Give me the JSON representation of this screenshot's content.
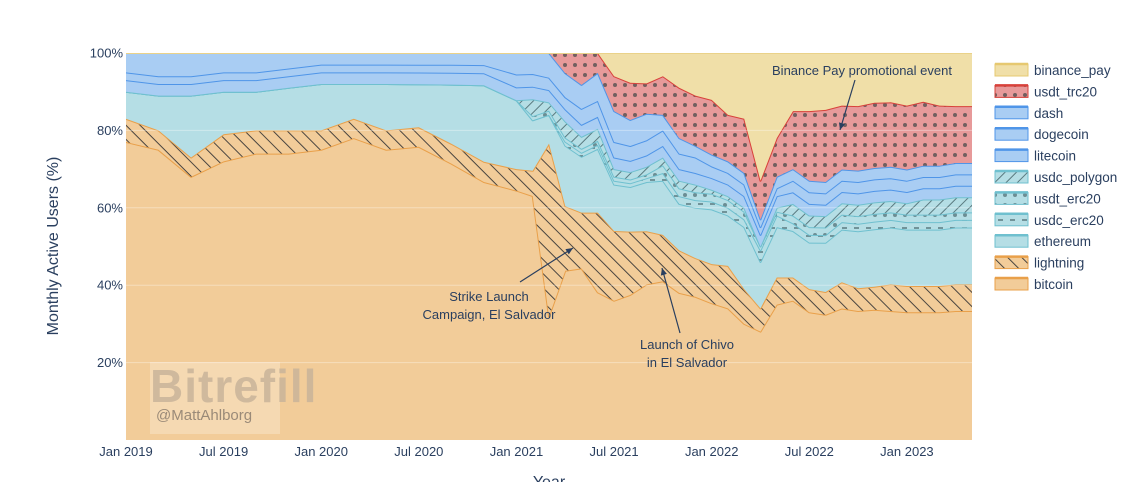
{
  "chart_data": {
    "type": "area",
    "stacked": "percent",
    "xlabel": "Year",
    "ylabel": "Monthly Active Users (%)",
    "x": [
      "2019-01",
      "2019-03",
      "2019-05",
      "2019-07",
      "2019-09",
      "2019-11",
      "2020-01",
      "2020-03",
      "2020-05",
      "2020-07",
      "2020-09",
      "2020-11",
      "2021-01",
      "2021-02",
      "2021-03",
      "2021-04",
      "2021-05",
      "2021-06",
      "2021-07",
      "2021-08",
      "2021-09",
      "2021-10",
      "2021-11",
      "2021-12",
      "2022-01",
      "2022-02",
      "2022-03",
      "2022-04",
      "2022-05",
      "2022-06",
      "2022-07",
      "2022-08",
      "2022-09",
      "2022-10",
      "2022-11",
      "2022-12",
      "2023-01",
      "2023-02",
      "2023-03",
      "2023-04",
      "2023-05"
    ],
    "xticks": [
      "Jan 2019",
      "Jul 2019",
      "Jan 2020",
      "Jul 2020",
      "Jan 2021",
      "Jul 2021",
      "Jan 2022",
      "Jul 2022",
      "Jan 2023"
    ],
    "yticks": [
      "20%",
      "40%",
      "60%",
      "80%",
      "100%"
    ],
    "ylim": [
      0,
      100
    ],
    "series": [
      {
        "name": "bitcoin",
        "color": "#f2cc99",
        "values": [
          77,
          75,
          68,
          72,
          74,
          74,
          75,
          78,
          75,
          75,
          70,
          64,
          58,
          58,
          30,
          42,
          43,
          37,
          36,
          39,
          41,
          41,
          38,
          37,
          35,
          34,
          30,
          28,
          35,
          36,
          33,
          33,
          35,
          34,
          34,
          34,
          34,
          34,
          34,
          34,
          34
        ]
      },
      {
        "name": "lightning",
        "color": "#f2cc99",
        "values": [
          6,
          5,
          5,
          7,
          6,
          6,
          5,
          5,
          5,
          5,
          5,
          5,
          5,
          6,
          42,
          16,
          14,
          20,
          18,
          17,
          14,
          12,
          11,
          10,
          10,
          11,
          9,
          6,
          7,
          6,
          6,
          6,
          7,
          6,
          6,
          7,
          7,
          7,
          7,
          7,
          7
        ]
      },
      {
        "name": "ethereum",
        "color": "#b5dee5",
        "values": [
          7,
          9,
          16,
          11,
          10,
          11,
          12,
          9,
          12,
          11,
          15,
          19,
          16,
          12,
          7,
          15,
          14,
          16,
          12,
          12,
          13,
          14,
          12,
          13,
          14,
          13,
          16,
          12,
          13,
          12,
          12,
          13,
          14,
          15,
          15,
          15,
          15,
          15,
          15,
          15,
          15
        ]
      },
      {
        "name": "usdc_erc20",
        "color": "#b5dee5",
        "values": [
          0,
          0,
          0,
          0,
          0,
          0,
          0,
          0,
          0,
          0,
          0,
          0,
          0,
          0,
          0,
          1,
          1,
          1,
          1,
          1,
          1,
          2,
          2,
          2,
          2,
          2,
          2,
          3,
          3,
          2,
          2,
          2,
          2,
          2,
          2,
          2,
          2,
          2,
          2,
          2,
          2
        ]
      },
      {
        "name": "usdt_erc20",
        "color": "#b5dee5",
        "values": [
          0,
          0,
          0,
          0,
          0,
          0,
          0,
          0,
          0,
          0,
          0,
          0,
          0,
          1,
          1,
          1,
          1,
          1,
          1,
          1,
          1,
          2,
          2,
          2,
          2,
          2,
          2,
          1,
          1,
          2,
          2,
          2,
          2,
          2,
          2,
          2,
          2,
          2,
          2,
          2,
          2
        ]
      },
      {
        "name": "usdc_polygon",
        "color": "#b5dee5",
        "values": [
          0,
          0,
          0,
          0,
          0,
          0,
          0,
          0,
          0,
          0,
          0,
          0,
          0,
          4,
          2,
          4,
          3,
          3,
          2,
          2,
          2,
          2,
          2,
          2,
          1,
          1,
          1,
          0,
          1,
          3,
          3,
          3,
          3,
          3,
          3,
          3,
          3,
          4,
          4,
          4,
          4
        ]
      },
      {
        "name": "litecoin",
        "color": "#a9cdf3",
        "values": [
          3,
          3,
          3,
          3,
          3,
          3,
          3,
          3,
          3,
          3,
          3,
          3,
          3,
          3,
          3,
          3,
          3,
          3,
          3,
          3,
          3,
          3,
          3,
          3,
          3,
          3,
          3,
          3,
          3,
          3,
          3,
          3,
          3,
          3,
          3,
          3,
          3,
          3,
          3,
          3,
          3
        ]
      },
      {
        "name": "dogecoin",
        "color": "#a9cdf3",
        "values": [
          2,
          2,
          2,
          2,
          2,
          2,
          2,
          2,
          2,
          2,
          2,
          2,
          3,
          3,
          3,
          3,
          4,
          4,
          4,
          4,
          4,
          4,
          4,
          4,
          3,
          3,
          3,
          2,
          2,
          3,
          3,
          3,
          3,
          3,
          3,
          3,
          3,
          3,
          3,
          3,
          3
        ]
      },
      {
        "name": "dash",
        "color": "#a9cdf3",
        "values": [
          5,
          6,
          6,
          5,
          5,
          4,
          3,
          3,
          3,
          3,
          3,
          3,
          5,
          5,
          6,
          6,
          6,
          7,
          8,
          7,
          7,
          4,
          4,
          3,
          3,
          3,
          3,
          2,
          3,
          3,
          3,
          3,
          3,
          3,
          3,
          3,
          3,
          3,
          3,
          3,
          3
        ]
      },
      {
        "name": "usdt_trc20",
        "color": "#e79a9a",
        "values": [
          0,
          0,
          0,
          0,
          0,
          0,
          0,
          0,
          0,
          0,
          0,
          0,
          0,
          0,
          0,
          5,
          8,
          5,
          9,
          10,
          8,
          10,
          13,
          13,
          14,
          12,
          14,
          10,
          10,
          15,
          18,
          19,
          17,
          17,
          17,
          17,
          17,
          17,
          16,
          15,
          15
        ]
      },
      {
        "name": "binance_pay",
        "color": "#f0dfa8",
        "values": [
          0,
          0,
          0,
          0,
          0,
          0,
          0,
          0,
          0,
          0,
          0,
          0,
          0,
          0,
          0,
          0,
          0,
          0,
          6,
          8,
          8,
          6,
          9,
          11,
          12,
          16,
          17,
          33,
          22,
          15,
          15,
          15,
          14,
          14,
          13,
          13,
          14,
          13,
          14,
          14,
          14
        ]
      }
    ],
    "legend": [
      "binance_pay",
      "usdt_trc20",
      "dash",
      "dogecoin",
      "litecoin",
      "usdc_polygon",
      "usdt_erc20",
      "usdc_erc20",
      "ethereum",
      "lightning",
      "bitcoin"
    ],
    "legend_position": "right",
    "annotations": [
      {
        "lines": [
          "Binance Pay promotional event"
        ],
        "x": "2022-07",
        "y": 80
      },
      {
        "lines": [
          "Strike Launch",
          "Campaign, El Salvador"
        ],
        "x": "2021-03",
        "y": 50
      },
      {
        "lines": [
          "Launch of Chivo",
          "in El Salvador"
        ],
        "x": "2021-09",
        "y": 44
      }
    ]
  },
  "watermark": {
    "brand": "Bitrefill",
    "handle": "@MattAhlborg"
  }
}
